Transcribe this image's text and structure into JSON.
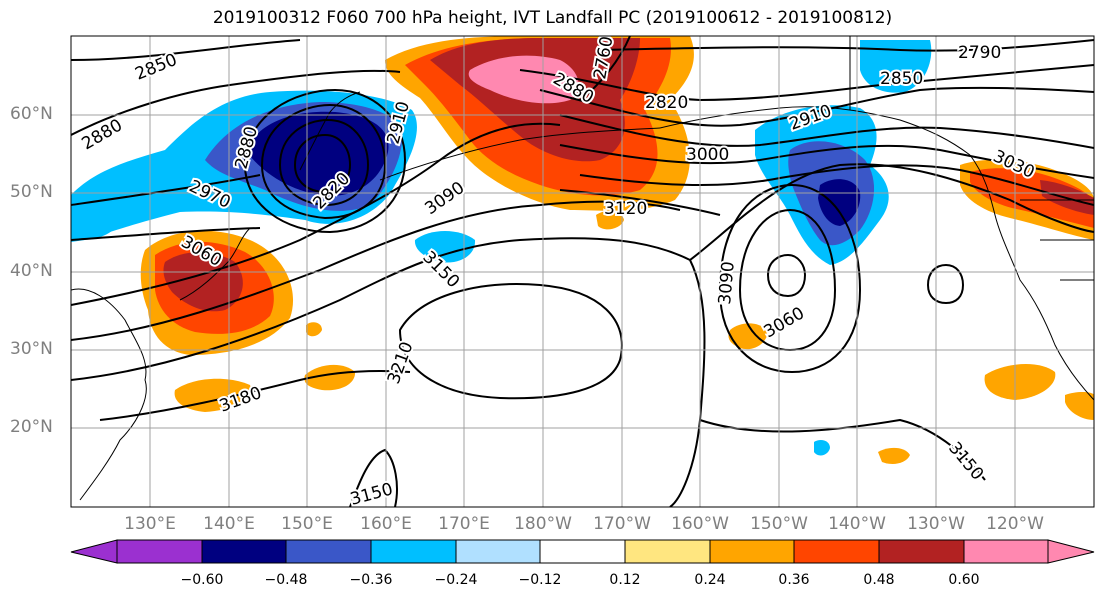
{
  "title": "2019100312 F060 700 hPa height, IVT Landfall PC (2019100612 - 2019100812)",
  "latitude_labels": [
    "60°N",
    "50°N",
    "40°N",
    "30°N",
    "20°N"
  ],
  "longitude_labels": [
    "130°E",
    "140°E",
    "150°E",
    "160°E",
    "170°E",
    "180°W",
    "170°W",
    "160°W",
    "150°W",
    "140°W",
    "130°W",
    "120°W"
  ],
  "contour_labels": [
    "2850",
    "2880",
    "2880",
    "2970",
    "3060",
    "2820",
    "2910",
    "2760",
    "2880",
    "3090",
    "3120",
    "3150",
    "3180",
    "3210",
    "3150",
    "2820",
    "3000",
    "3090",
    "3060",
    "2790",
    "2850",
    "2910",
    "3030",
    "3150"
  ],
  "colorbar": {
    "labels": [
      "−0.60",
      "−0.48",
      "−0.36",
      "−0.24",
      "−0.12",
      "0.12",
      "0.24",
      "0.36",
      "0.48",
      "0.60"
    ],
    "colors": [
      "#9b30d0",
      "#000080",
      "#3a57c8",
      "#00bfff",
      "#b0e0ff",
      "#ffffff",
      "#ffe680",
      "#ffa500",
      "#ff4500",
      "#b22222",
      "#ff88b0"
    ]
  },
  "colors": {
    "grid": "#a0a0a0",
    "contour": "#000000",
    "tick_label": "#7f7f7f"
  }
}
